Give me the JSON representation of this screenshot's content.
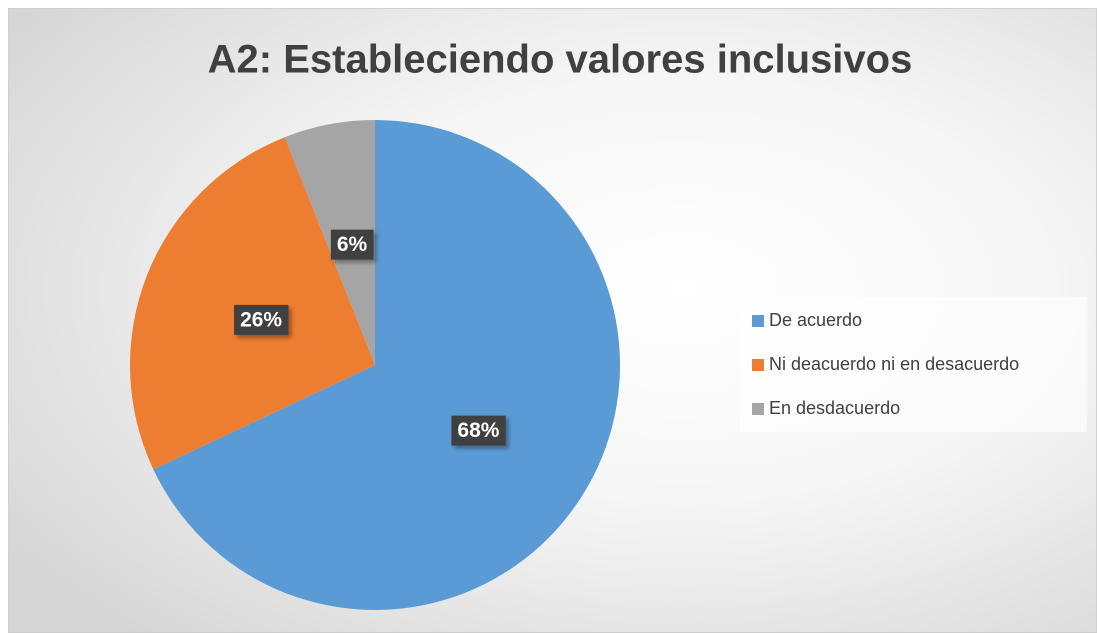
{
  "chart_data": {
    "type": "pie",
    "title": "A2: Estableciendo valores inclusivos",
    "categories": [
      "De acuerdo",
      "Ni deacuerdo ni en desacuerdo",
      "En desdacuerdo"
    ],
    "values": [
      68,
      26,
      6
    ],
    "value_labels": [
      "68%",
      "26%",
      "6%"
    ],
    "colors": [
      "#5b9bd5",
      "#ed7d31",
      "#a5a5a5"
    ],
    "legend": "right"
  }
}
